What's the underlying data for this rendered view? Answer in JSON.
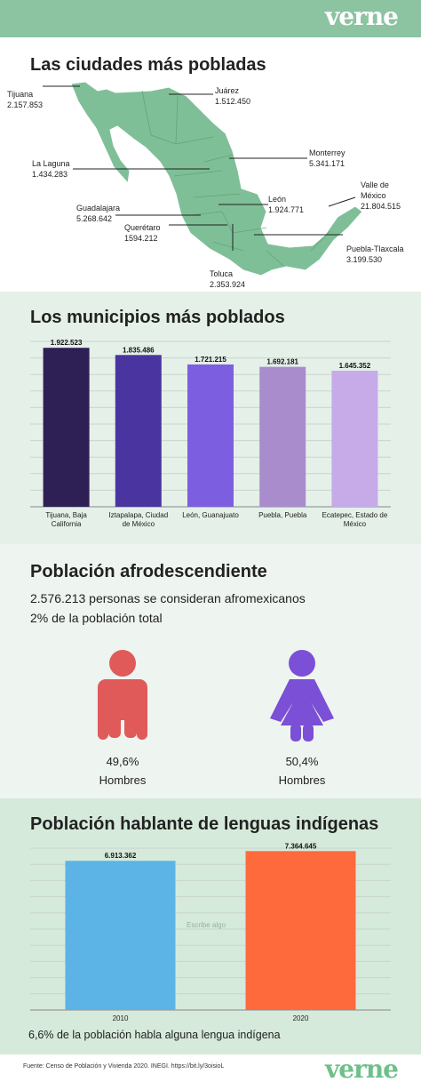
{
  "brand": {
    "logo": "verne",
    "colors": {
      "green": "#8cc3a0",
      "map": "#7fbf97"
    }
  },
  "cities": {
    "title": "Las ciudades más pobladas",
    "items": [
      {
        "name": "Tijuana",
        "value": "2.157.853"
      },
      {
        "name": "Juárez",
        "value": "1.512.450"
      },
      {
        "name": "Monterrey",
        "value": "5.341.171"
      },
      {
        "name": "La Laguna",
        "value": "1.434.283"
      },
      {
        "name": "León",
        "value": "1.924.771"
      },
      {
        "name": "Valle de México",
        "value": "21.804.515"
      },
      {
        "name": "Guadalajara",
        "value": "5.268.642"
      },
      {
        "name": "Querétaro",
        "value": "1594.212"
      },
      {
        "name": "Puebla-Tlaxcala",
        "value": "3.199.530"
      },
      {
        "name": "Toluca",
        "value": "2.353.924"
      }
    ]
  },
  "municipios": {
    "title": "Los municipios más poblados"
  },
  "afro": {
    "title": "Población afrodescendiente",
    "line1": "2.576.213 personas se consideran afromexicanos",
    "line2": "2% de la población total",
    "men": {
      "pct": "49,6%",
      "label": "Hombres",
      "color": "#e05a5a",
      "icon": "man-icon"
    },
    "women": {
      "pct": "50,4%",
      "label": "Hombres",
      "color": "#7b4fd6",
      "icon": "woman-icon"
    }
  },
  "indigenas": {
    "title": "Población hablante de lenguas indígenas",
    "note": "6,6% de la población habla alguna lengua indígena",
    "watermark": "Escribe algo"
  },
  "footer": {
    "source": "Fuente: Censo de Población y Vivienda 2020. INEGI. https://bit.ly/3oisioL",
    "logo": "verne"
  },
  "chart_data": [
    {
      "type": "bar",
      "title": "Los municipios más poblados",
      "categories": [
        "Tijuana, Baja California",
        "Iztapalapa, Ciudad de México",
        "León, Guanajuato",
        "Puebla, Puebla",
        "Ecatepec, Estado de México"
      ],
      "values": [
        1922523,
        1835486,
        1721215,
        1692181,
        1645352
      ],
      "value_labels": [
        "1.922.523",
        "1.835.486",
        "1.721.215",
        "1.692.181",
        "1.645.352"
      ],
      "colors": [
        "#2e1f55",
        "#4a35a0",
        "#7b5fe0",
        "#a98ccc",
        "#c7abe8"
      ],
      "ylim": [
        0,
        2000000
      ],
      "grid": true
    },
    {
      "type": "bar",
      "title": "Población hablante de lenguas indígenas",
      "categories": [
        "2010",
        "2020"
      ],
      "values": [
        6913362,
        7364645
      ],
      "value_labels": [
        "6.913.362",
        "7.364.645"
      ],
      "colors": [
        "#5cb3e6",
        "#ff6a3d"
      ],
      "ylim": [
        0,
        7500000
      ],
      "grid": true
    }
  ]
}
